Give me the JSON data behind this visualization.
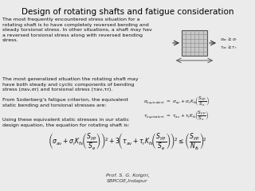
{
  "title": "Design of rotating shafts and fatigue consideration",
  "title_fontsize": 7.5,
  "bg_color": "#ebebeb",
  "para1": "The most frequently encountered stress situation for a\nrotating shaft is to have completely reversed bending and\nsteady torsional stress. In other situations, a shaft may hav\na reversed torsional stress along with reversed bending\nstress.",
  "para2": "The most generalized situation the rotating shaft may\nhave both steady and cyclic components of bending\nstress (σav,σr) and torsional stress (τav,τr).",
  "para3": "From Soderberg’s fatigue criterion, the equivalent\nstatic bending and torsional stresses are:",
  "para4": "Using these equivalent static stresses in our static\ndesign equation, the equation for rotating shaft is:",
  "footer": "Prof. S. G. Kolgiri,\nSBPCOE,Indapur",
  "text_fontsize": 4.5,
  "eq_fontsize": 4.2,
  "main_eq_fontsize": 5.5,
  "footer_fontsize": 4.5
}
